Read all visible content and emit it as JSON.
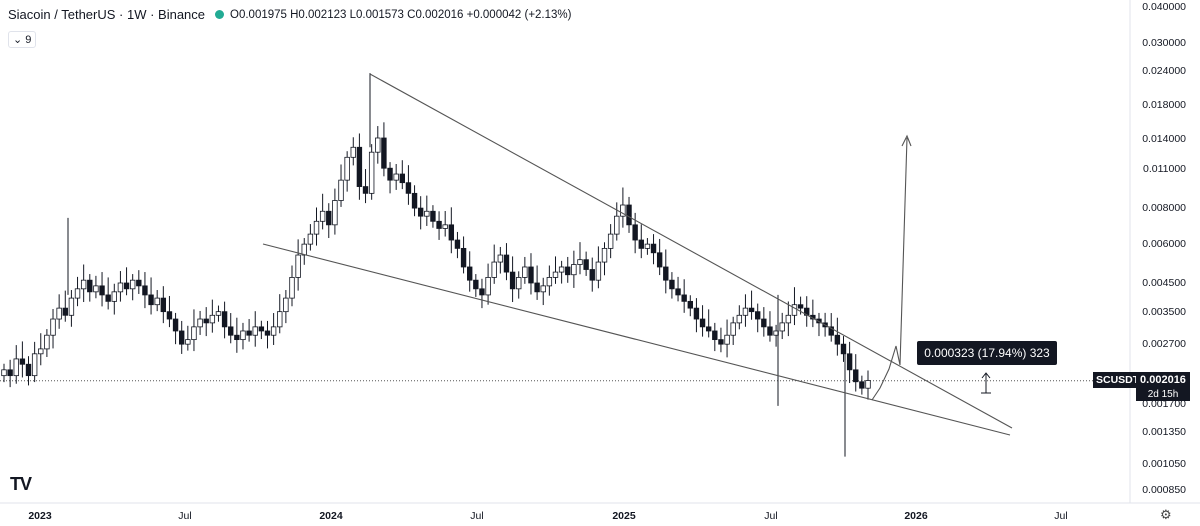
{
  "header": {
    "symbol_line": "Siacoin / TetherUS · 1W · Binance",
    "ohlc": "O0.001975 H0.002123 L0.001573 C0.002016 +0.000042 (+2.13%)",
    "status_color": "#22ab94"
  },
  "indicator_badge": {
    "icon": "chevron-down-icon",
    "label": "9"
  },
  "measure_label": "0.000323 (17.94%) 323",
  "symbol_tag": "SCUSDT",
  "last_price": "0.002016",
  "countdown": "2d 15h",
  "logo_text": "TV",
  "colors": {
    "up": "#131722",
    "down": "#131722",
    "line": "#555555",
    "grid": "#e6e6e6"
  },
  "chart_data": {
    "type": "candlestick",
    "x_ticks": [
      "2023",
      "Jul",
      "2024",
      "Jul",
      "2025",
      "Jul",
      "2026",
      "Jul"
    ],
    "y_ticks": [
      "0.040000",
      "0.030000",
      "0.024000",
      "0.018000",
      "0.014000",
      "0.011000",
      "0.008000",
      "0.006000",
      "0.004500",
      "0.003500",
      "0.002700",
      "0.001700",
      "0.001350",
      "0.001050",
      "0.000850"
    ],
    "y_scale": "log",
    "last_close": 0.002016,
    "measure": {
      "delta": 0.000323,
      "percent": 17.94,
      "ticks": 323
    },
    "trendlines": [
      {
        "name": "upper-wedge",
        "from": [
          "2024-02",
          0.023
        ],
        "to": [
          "2026-02",
          0.0014
        ]
      },
      {
        "name": "lower-wedge",
        "from": [
          "2023-10",
          0.0058
        ],
        "to": [
          "2026-02",
          0.00135
        ]
      },
      {
        "name": "projection-arrow",
        "from": [
          "2025-11",
          0.0019
        ],
        "to": [
          "2025-12",
          0.0145
        ]
      }
    ]
  }
}
